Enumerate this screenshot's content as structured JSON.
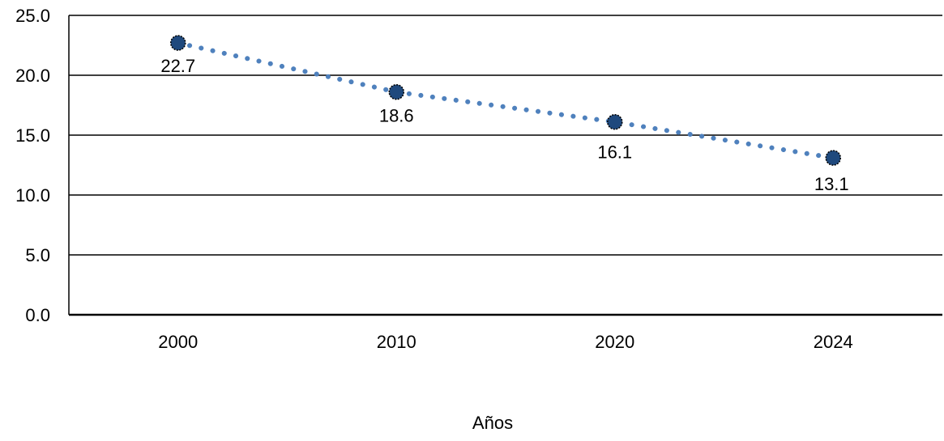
{
  "chart_data": {
    "type": "line",
    "x": [
      "2000",
      "2010",
      "2020",
      "2024"
    ],
    "series": [
      {
        "values": [
          22.7,
          18.6,
          16.1,
          13.1
        ]
      }
    ],
    "data_labels": [
      "22.7",
      "18.6",
      "16.1",
      "13.1"
    ],
    "xlabel": "Años",
    "ylabel": "",
    "ylim": [
      0,
      25
    ],
    "yticks": [
      "0.0",
      "5.0",
      "10.0",
      "15.0",
      "20.0",
      "25.0"
    ],
    "grid": true,
    "legend": "none",
    "colors": {
      "line": "#4f81bd",
      "marker_fill": "#1f497d",
      "marker_edge": "#000000",
      "grid": "#000000"
    },
    "line_style": "dotted",
    "marker": "circle"
  }
}
